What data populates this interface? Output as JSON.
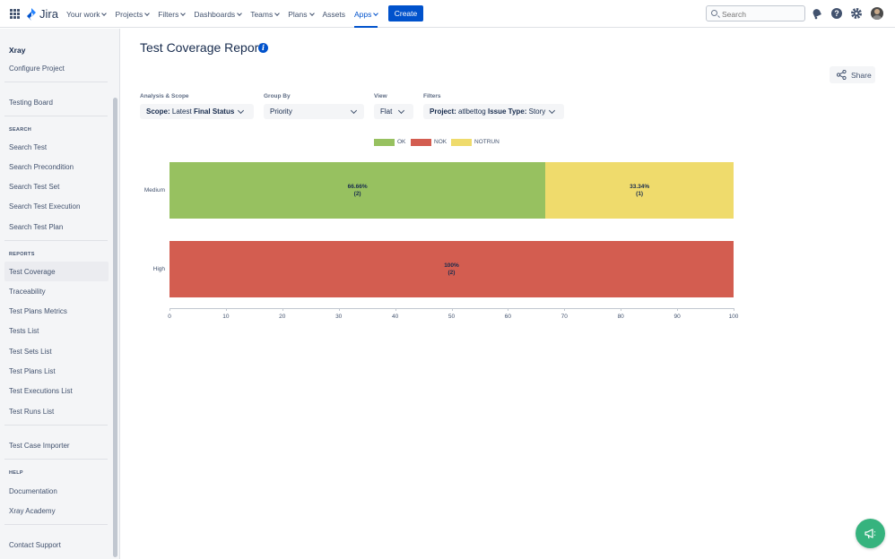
{
  "topnav": {
    "logo_text": "Jira",
    "items": [
      {
        "label": "Your work",
        "has_chevron": true
      },
      {
        "label": "Projects",
        "has_chevron": true
      },
      {
        "label": "Filters",
        "has_chevron": true
      },
      {
        "label": "Dashboards",
        "has_chevron": true
      },
      {
        "label": "Teams",
        "has_chevron": true
      },
      {
        "label": "Plans",
        "has_chevron": true
      },
      {
        "label": "Assets",
        "has_chevron": false
      },
      {
        "label": "Apps",
        "has_chevron": true,
        "active": true
      }
    ],
    "create_label": "Create",
    "search_placeholder": "Search",
    "icons": [
      "notification-icon",
      "help-icon",
      "settings-icon",
      "avatar"
    ]
  },
  "sidebar": {
    "title": "Xray",
    "configure": "Configure Project",
    "testing_board": "Testing Board",
    "search_heading": "SEARCH",
    "search_items": [
      "Search Test",
      "Search Precondition",
      "Search Test Set",
      "Search Test Execution",
      "Search Test Plan"
    ],
    "reports_heading": "REPORTS",
    "reports_items": [
      "Test Coverage",
      "Traceability",
      "Test Plans Metrics",
      "Tests List",
      "Test Sets List",
      "Test Plans List",
      "Test Executions List",
      "Test Runs List"
    ],
    "importer": "Test Case Importer",
    "help_heading": "HELP",
    "help_items": [
      "Documentation",
      "Xray Academy"
    ],
    "contact": "Contact Support"
  },
  "main": {
    "title": "Test Coverage Report",
    "share_label": "Share",
    "filters": {
      "analysis_label": "Analysis & Scope",
      "scope_key": "Scope:",
      "scope_value": "Latest",
      "scope_bold": "Final Status",
      "groupby_label": "Group By",
      "groupby_value": "Priority",
      "view_label": "View",
      "view_value": "Flat",
      "filters_label": "Filters",
      "project_key": "Project:",
      "project_value": "atlbettog",
      "issuetype_key": "Issue Type:",
      "issuetype_value": "Story"
    }
  },
  "chart_data": {
    "type": "bar",
    "orientation": "horizontal",
    "stacked": true,
    "categories": [
      "Medium",
      "High"
    ],
    "series": [
      {
        "name": "OK",
        "color": "#97c160",
        "values": [
          66.66,
          0
        ],
        "labels": [
          "66.66%",
          ""
        ],
        "counts": [
          "(2)",
          ""
        ]
      },
      {
        "name": "NOK",
        "color": "#d35d50",
        "values": [
          0,
          100
        ],
        "labels": [
          "",
          "100%"
        ],
        "counts": [
          "",
          "(2)"
        ]
      },
      {
        "name": "NOTRUN",
        "color": "#efdb6c",
        "values": [
          33.34,
          0
        ],
        "labels": [
          "33.34%",
          ""
        ],
        "counts": [
          "(1)",
          ""
        ]
      }
    ],
    "xlim": [
      0,
      100
    ],
    "xticks": [
      "0",
      "10",
      "20",
      "30",
      "40",
      "50",
      "60",
      "70",
      "80",
      "90",
      "100"
    ],
    "legend_position": "top"
  }
}
